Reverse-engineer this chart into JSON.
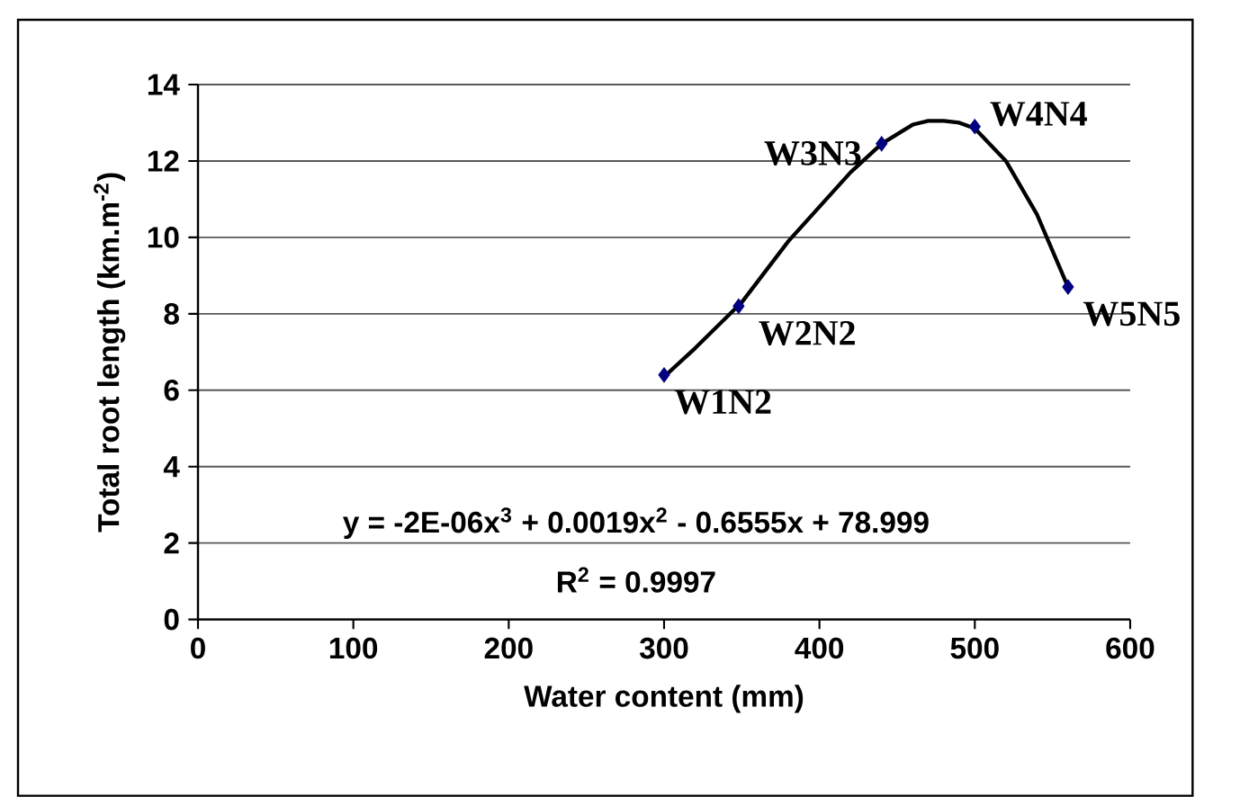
{
  "chart_data": {
    "type": "scatter",
    "xlabel": "Water content (mm)",
    "ylabel": "Total root length (km.m$^{-2}$)",
    "xlim": [
      0,
      600
    ],
    "xticks": [
      0,
      100,
      200,
      300,
      400,
      500,
      600
    ],
    "ylim": [
      0,
      14
    ],
    "yticks": [
      0,
      2,
      4,
      6,
      8,
      10,
      12,
      14
    ],
    "grid": "y",
    "series": [
      {
        "color": "#000080",
        "marker": "diamond",
        "x": [
          300,
          348,
          440,
          500,
          560
        ],
        "values": [
          6.4,
          8.2,
          12.45,
          12.9,
          8.7
        ]
      },
      {
        "type": "line",
        "color": "#000000",
        "line_style": "solid",
        "x": [
          300,
          320,
          350,
          380,
          400,
          420,
          440,
          460,
          470,
          480,
          490,
          500,
          520,
          540,
          560
        ],
        "values": [
          6.35,
          7.1,
          8.3,
          9.9,
          10.8,
          11.7,
          12.45,
          12.95,
          13.05,
          13.05,
          13.0,
          12.85,
          12.0,
          10.6,
          8.7
        ]
      }
    ],
    "annotations": [
      {
        "text": "W1N2",
        "x": 300,
        "y": 6.4
      },
      {
        "text": "W2N2",
        "x": 348,
        "y": 8.2
      },
      {
        "text": "W3N3",
        "x": 440,
        "y": 12.45
      },
      {
        "text": "W4N4",
        "x": 500,
        "y": 12.9
      },
      {
        "text": "W5N5",
        "x": 560,
        "y": 8.7
      },
      "y = -2E-06x$^{3}$ + 0.0019x$^{2}$ - 0.6555x + 78.999",
      "R$^{2}$ = 0.9997"
    ]
  }
}
